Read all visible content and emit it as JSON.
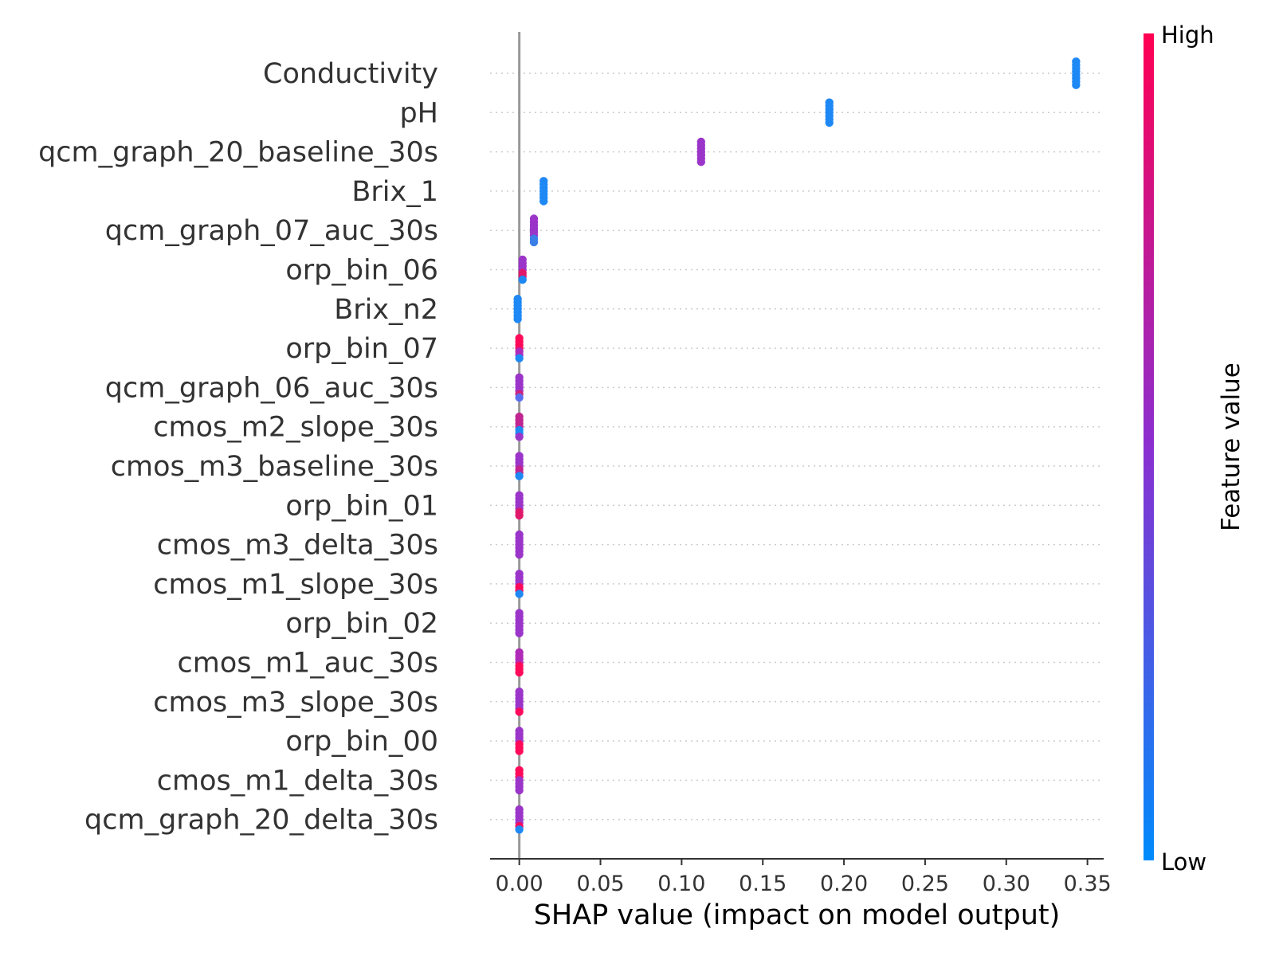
{
  "chart_data": {
    "type": "scatter",
    "subtype": "shap-beeswarm",
    "xlabel": "SHAP value (impact on model output)",
    "xlim": [
      -0.018,
      0.36
    ],
    "x_ticks": [
      "0.00",
      "0.05",
      "0.10",
      "0.15",
      "0.20",
      "0.25",
      "0.30",
      "0.35"
    ],
    "x_tick_values": [
      0.0,
      0.05,
      0.1,
      0.15,
      0.2,
      0.25,
      0.3,
      0.35
    ],
    "grid": "horizontal dotted lines per feature",
    "colorbar": {
      "title": "Feature value",
      "high_label": "High",
      "low_label": "Low",
      "high_color": "#ff0052",
      "mid_color": "#8a2fd0",
      "low_color": "#008bfb"
    },
    "features": [
      {
        "name": "Conductivity",
        "points": [
          {
            "x": 0.343,
            "color": "#1e88f5",
            "n": 8
          }
        ]
      },
      {
        "name": "pH",
        "points": [
          {
            "x": 0.191,
            "color": "#1e88f5",
            "n": 7
          }
        ]
      },
      {
        "name": "qcm_graph_20_baseline_30s",
        "points": [
          {
            "x": 0.112,
            "color": "#9b35c9",
            "n": 7
          }
        ]
      },
      {
        "name": "Brix_1",
        "points": [
          {
            "x": 0.015,
            "color": "#1e88f5",
            "n": 7
          }
        ]
      },
      {
        "name": "qcm_graph_07_auc_30s",
        "points": [
          {
            "x": 0.009,
            "color": "#9b35c9",
            "n": 6
          },
          {
            "x": 0.009,
            "color": "#3a7ee8",
            "n": 2
          }
        ]
      },
      {
        "name": "orp_bin_06",
        "points": [
          {
            "x": 0.002,
            "color": "#9b35c9",
            "n": 4
          },
          {
            "x": 0.002,
            "color": "#e0186a",
            "n": 2
          },
          {
            "x": 0.002,
            "color": "#1e88f5",
            "n": 1
          }
        ]
      },
      {
        "name": "Brix_n2",
        "points": [
          {
            "x": -0.001,
            "color": "#1e88f5",
            "n": 7
          }
        ]
      },
      {
        "name": "orp_bin_07",
        "points": [
          {
            "x": 0.0,
            "color": "#ff0a5a",
            "n": 4
          },
          {
            "x": 0.0,
            "color": "#b02ab8",
            "n": 2
          },
          {
            "x": 0.0,
            "color": "#1e88f5",
            "n": 1
          }
        ]
      },
      {
        "name": "qcm_graph_06_auc_30s",
        "points": [
          {
            "x": 0.0,
            "color": "#9b35c9",
            "n": 5
          },
          {
            "x": 0.0,
            "color": "#d0207a",
            "n": 1
          },
          {
            "x": 0.0,
            "color": "#5a6ef0",
            "n": 1
          }
        ]
      },
      {
        "name": "cmos_m2_slope_30s",
        "points": [
          {
            "x": 0.0,
            "color": "#c02590",
            "n": 4
          },
          {
            "x": 0.0,
            "color": "#1e88f5",
            "n": 2
          },
          {
            "x": 0.0,
            "color": "#9b35c9",
            "n": 1
          }
        ]
      },
      {
        "name": "cmos_m3_baseline_30s",
        "points": [
          {
            "x": 0.0,
            "color": "#9b35c9",
            "n": 4
          },
          {
            "x": 0.0,
            "color": "#c02590",
            "n": 2
          },
          {
            "x": 0.0,
            "color": "#1e88f5",
            "n": 1
          }
        ]
      },
      {
        "name": "orp_bin_01",
        "points": [
          {
            "x": 0.0,
            "color": "#9b35c9",
            "n": 5
          },
          {
            "x": 0.0,
            "color": "#e0186a",
            "n": 2
          }
        ]
      },
      {
        "name": "cmos_m3_delta_30s",
        "points": [
          {
            "x": 0.0,
            "color": "#9b35c9",
            "n": 7
          }
        ]
      },
      {
        "name": "cmos_m1_slope_30s",
        "points": [
          {
            "x": 0.0,
            "color": "#9b35c9",
            "n": 4
          },
          {
            "x": 0.0,
            "color": "#ff0a5a",
            "n": 2
          },
          {
            "x": 0.0,
            "color": "#1e88f5",
            "n": 1
          }
        ]
      },
      {
        "name": "orp_bin_02",
        "points": [
          {
            "x": 0.0,
            "color": "#9b35c9",
            "n": 7
          }
        ]
      },
      {
        "name": "cmos_m1_auc_30s",
        "points": [
          {
            "x": 0.0,
            "color": "#b02ab8",
            "n": 4
          },
          {
            "x": 0.0,
            "color": "#ff0a5a",
            "n": 3
          }
        ]
      },
      {
        "name": "cmos_m3_slope_30s",
        "points": [
          {
            "x": 0.0,
            "color": "#9b35c9",
            "n": 6
          },
          {
            "x": 0.0,
            "color": "#ff0a5a",
            "n": 1
          }
        ]
      },
      {
        "name": "orp_bin_00",
        "points": [
          {
            "x": 0.0,
            "color": "#9b35c9",
            "n": 4
          },
          {
            "x": 0.0,
            "color": "#ff0a5a",
            "n": 3
          }
        ]
      },
      {
        "name": "cmos_m1_delta_30s",
        "points": [
          {
            "x": 0.0,
            "color": "#ff0a5a",
            "n": 3
          },
          {
            "x": 0.0,
            "color": "#9b35c9",
            "n": 4
          }
        ]
      },
      {
        "name": "qcm_graph_20_delta_30s",
        "points": [
          {
            "x": 0.0,
            "color": "#9b35c9",
            "n": 5
          },
          {
            "x": 0.0,
            "color": "#ff0a5a",
            "n": 1
          },
          {
            "x": 0.0,
            "color": "#1e88f5",
            "n": 1
          }
        ]
      }
    ]
  }
}
